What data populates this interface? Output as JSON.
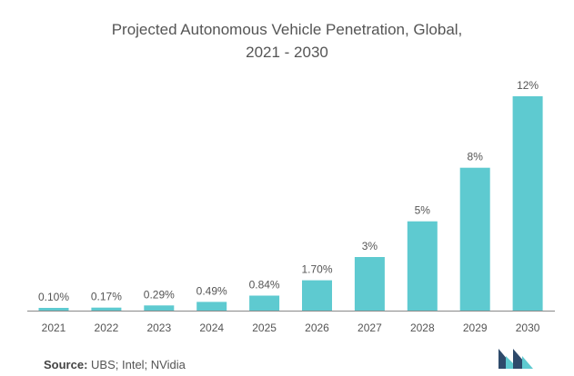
{
  "title_lines": [
    "Projected Autonomous Vehicle Penetration, Global,",
    "2021 - 2030"
  ],
  "source": {
    "label": "Source:",
    "text": "UBS; Intel; NVidia"
  },
  "colors": {
    "bar": "#5ecad0",
    "axis": "#888888",
    "text": "#555555",
    "logo_dark": "#2e4a6b",
    "logo_teal": "#5ecad0"
  },
  "chart_data": {
    "type": "bar",
    "title": "Projected Autonomous Vehicle Penetration, Global, 2021 - 2030",
    "xlabel": "",
    "ylabel": "",
    "categories": [
      "2021",
      "2022",
      "2023",
      "2024",
      "2025",
      "2026",
      "2027",
      "2028",
      "2029",
      "2030"
    ],
    "values": [
      0.1,
      0.17,
      0.29,
      0.49,
      0.84,
      1.7,
      3,
      5,
      8,
      12
    ],
    "data_labels": [
      "0.10%",
      "0.17%",
      "0.29%",
      "0.49%",
      "0.84%",
      "1.70%",
      "3%",
      "5%",
      "8%",
      "12%"
    ],
    "ylim": [
      0,
      12
    ],
    "grid": false,
    "legend": "none"
  }
}
